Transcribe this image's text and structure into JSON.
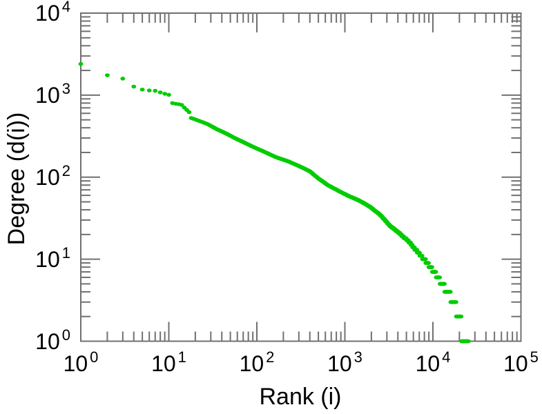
{
  "page": {
    "background": "#ffffff"
  },
  "chart_data": {
    "type": "scatter",
    "title": "",
    "xlabel": "Rank (i)",
    "ylabel": "Degree (d(i))",
    "x_scale": "log",
    "y_scale": "log",
    "xlim": [
      1,
      100000
    ],
    "ylim": [
      1,
      10000
    ],
    "tick_base": "10",
    "x_tick_exponents": [
      0,
      1,
      2,
      3,
      4,
      5
    ],
    "y_tick_exponents": [
      0,
      1,
      2,
      3,
      4
    ],
    "grid": false,
    "legend": null,
    "marker": {
      "shape": "dot",
      "color": "#00cc00",
      "rx": 3.4,
      "ry": 2.8
    },
    "frame_color": "#707070",
    "text_color": "#000000",
    "series": [
      {
        "name": "degree-vs-rank",
        "max_rank": 25300,
        "degrees_are_integers": true,
        "anchors_rank_degree": [
          [
            1,
            2400
          ],
          [
            2,
            1750
          ],
          [
            3,
            1590
          ],
          [
            4,
            1270
          ],
          [
            5,
            1170
          ],
          [
            6,
            1140
          ],
          [
            7,
            1130
          ],
          [
            8,
            1080
          ],
          [
            9,
            1040
          ],
          [
            10,
            1010
          ],
          [
            11,
            800
          ],
          [
            12,
            785
          ],
          [
            13,
            775
          ],
          [
            14,
            760
          ],
          [
            15,
            705
          ],
          [
            16,
            660
          ],
          [
            17,
            620
          ],
          [
            18,
            525
          ],
          [
            20,
            505
          ],
          [
            24,
            470
          ],
          [
            28,
            440
          ],
          [
            35,
            385
          ],
          [
            45,
            340
          ],
          [
            56,
            300
          ],
          [
            70,
            268
          ],
          [
            90,
            235
          ],
          [
            120,
            205
          ],
          [
            166,
            175
          ],
          [
            230,
            155
          ],
          [
            300,
            137
          ],
          [
            400,
            118
          ],
          [
            490,
            98
          ],
          [
            640,
            80
          ],
          [
            850,
            68
          ],
          [
            1100,
            59
          ],
          [
            1450,
            52
          ],
          [
            1900,
            44
          ],
          [
            2500,
            35
          ],
          [
            3200,
            26
          ],
          [
            4200,
            20.5
          ],
          [
            5300,
            16.5
          ],
          [
            6400,
            13
          ],
          [
            7600,
            10.4
          ],
          [
            8300,
            9.5
          ],
          [
            9000,
            8.5
          ],
          [
            9800,
            7.5
          ],
          [
            10800,
            6.5
          ],
          [
            12000,
            5.5
          ],
          [
            13600,
            4.5
          ],
          [
            15800,
            3.5
          ],
          [
            18300,
            2.5
          ],
          [
            21000,
            1.49
          ],
          [
            25300,
            1
          ]
        ]
      }
    ]
  }
}
